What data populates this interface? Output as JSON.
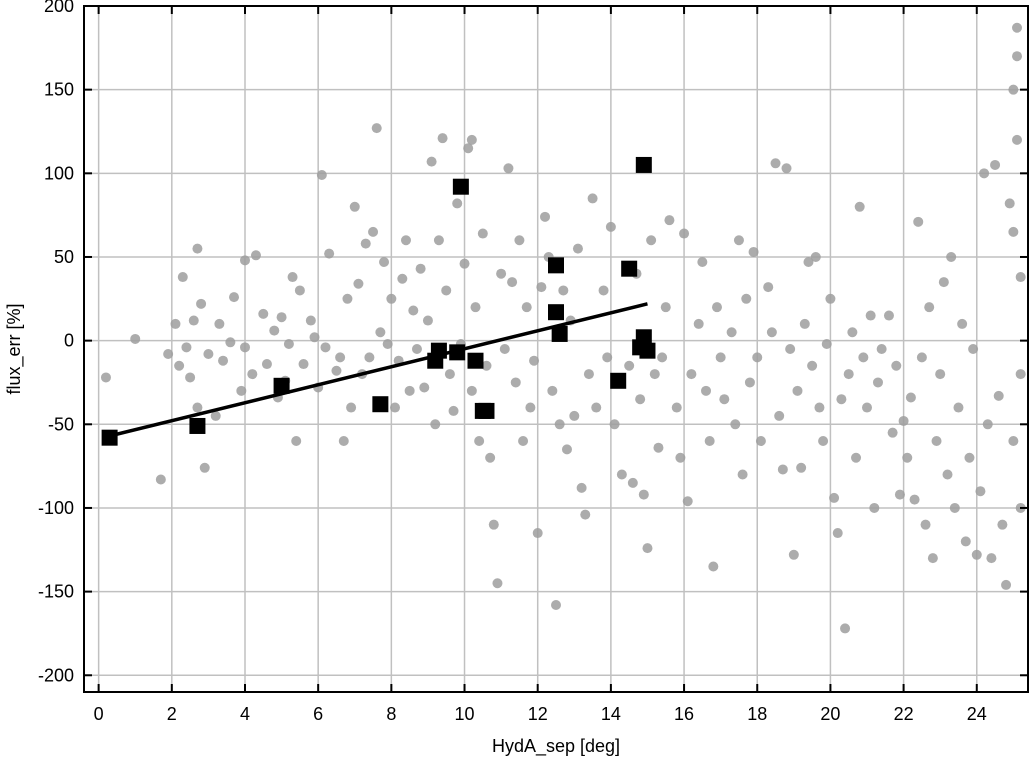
{
  "chart_data": {
    "type": "scatter",
    "title": "",
    "xlabel": "HydA_sep [deg]",
    "ylabel": "flux_err  [%]",
    "xlim": [
      -0.4,
      25.4
    ],
    "ylim": [
      -210,
      200
    ],
    "xticks": [
      0,
      2,
      4,
      6,
      8,
      10,
      12,
      14,
      16,
      18,
      20,
      22,
      24
    ],
    "yticks": [
      -200,
      -150,
      -100,
      -50,
      0,
      50,
      100,
      150,
      200
    ],
    "grid": true,
    "legend": "none",
    "colors": {
      "points": "#9e9e9e",
      "highlight": "#000000",
      "fit": "#000000",
      "grid": "#c0c0c0"
    },
    "series": [
      {
        "marker": "circle",
        "points": [
          [
            0.2,
            -22
          ],
          [
            1,
            1
          ],
          [
            1.7,
            -83
          ],
          [
            1.9,
            -8
          ],
          [
            2.1,
            10
          ],
          [
            2.2,
            -15
          ],
          [
            2.3,
            38
          ],
          [
            2.4,
            -4
          ],
          [
            2.5,
            -22
          ],
          [
            2.6,
            12
          ],
          [
            2.7,
            55
          ],
          [
            2.7,
            -40
          ],
          [
            2.8,
            22
          ],
          [
            2.9,
            -76
          ],
          [
            3,
            -8
          ],
          [
            3.2,
            -45
          ],
          [
            3.3,
            10
          ],
          [
            3.4,
            -12
          ],
          [
            3.6,
            -1
          ],
          [
            3.7,
            26
          ],
          [
            3.9,
            -30
          ],
          [
            4,
            -4
          ],
          [
            4,
            48
          ],
          [
            4.2,
            -20
          ],
          [
            4.3,
            51
          ],
          [
            4.5,
            16
          ],
          [
            4.6,
            -14
          ],
          [
            4.8,
            6
          ],
          [
            4.9,
            -34
          ],
          [
            5,
            14
          ],
          [
            5.1,
            -24
          ],
          [
            5.2,
            -2
          ],
          [
            5.3,
            38
          ],
          [
            5.4,
            -60
          ],
          [
            5.5,
            30
          ],
          [
            5.6,
            -14
          ],
          [
            5.8,
            12
          ],
          [
            5.9,
            2
          ],
          [
            6,
            -28
          ],
          [
            6.1,
            99
          ],
          [
            6.2,
            -4
          ],
          [
            6.3,
            52
          ],
          [
            6.5,
            -18
          ],
          [
            6.6,
            -10
          ],
          [
            6.7,
            -60
          ],
          [
            6.8,
            25
          ],
          [
            6.9,
            -40
          ],
          [
            7,
            80
          ],
          [
            7.1,
            34
          ],
          [
            7.2,
            -20
          ],
          [
            7.3,
            58
          ],
          [
            7.4,
            -10
          ],
          [
            7.5,
            65
          ],
          [
            7.6,
            127
          ],
          [
            7.7,
            5
          ],
          [
            7.8,
            47
          ],
          [
            7.9,
            -2
          ],
          [
            8,
            25
          ],
          [
            8.1,
            -40
          ],
          [
            8.2,
            -12
          ],
          [
            8.3,
            37
          ],
          [
            8.4,
            60
          ],
          [
            8.5,
            -30
          ],
          [
            8.6,
            18
          ],
          [
            8.7,
            -5
          ],
          [
            8.8,
            43
          ],
          [
            8.9,
            -28
          ],
          [
            9,
            12
          ],
          [
            9.1,
            107
          ],
          [
            9.2,
            -50
          ],
          [
            9.3,
            60
          ],
          [
            9.4,
            121
          ],
          [
            9.5,
            30
          ],
          [
            9.6,
            -20
          ],
          [
            9.7,
            -42
          ],
          [
            9.8,
            82
          ],
          [
            9.9,
            -2
          ],
          [
            10,
            46
          ],
          [
            10.1,
            115
          ],
          [
            10.2,
            -30
          ],
          [
            10.2,
            120
          ],
          [
            10.3,
            20
          ],
          [
            10.4,
            -60
          ],
          [
            10.5,
            64
          ],
          [
            10.6,
            -15
          ],
          [
            10.7,
            -70
          ],
          [
            10.8,
            -110
          ],
          [
            10.9,
            -145
          ],
          [
            11,
            40
          ],
          [
            11.1,
            -5
          ],
          [
            11.2,
            103
          ],
          [
            11.3,
            35
          ],
          [
            11.4,
            -25
          ],
          [
            11.5,
            60
          ],
          [
            11.6,
            -60
          ],
          [
            11.7,
            20
          ],
          [
            11.8,
            -40
          ],
          [
            11.9,
            -12
          ],
          [
            12,
            -115
          ],
          [
            12.1,
            32
          ],
          [
            12.2,
            74
          ],
          [
            12.3,
            50
          ],
          [
            12.4,
            -30
          ],
          [
            12.5,
            -158
          ],
          [
            12.6,
            -50
          ],
          [
            12.7,
            30
          ],
          [
            12.8,
            -65
          ],
          [
            12.9,
            12
          ],
          [
            13,
            -45
          ],
          [
            13.1,
            55
          ],
          [
            13.2,
            -88
          ],
          [
            13.3,
            -104
          ],
          [
            13.4,
            -20
          ],
          [
            13.5,
            85
          ],
          [
            13.6,
            -40
          ],
          [
            13.8,
            30
          ],
          [
            13.9,
            -10
          ],
          [
            14,
            68
          ],
          [
            14.1,
            -50
          ],
          [
            14.3,
            -80
          ],
          [
            14.5,
            -15
          ],
          [
            14.6,
            -85
          ],
          [
            14.7,
            40
          ],
          [
            14.8,
            -35
          ],
          [
            14.9,
            -92
          ],
          [
            15,
            -124
          ],
          [
            15.1,
            60
          ],
          [
            15.2,
            -20
          ],
          [
            15.3,
            -64
          ],
          [
            15.4,
            -10
          ],
          [
            15.5,
            20
          ],
          [
            15.6,
            72
          ],
          [
            15.8,
            -40
          ],
          [
            15.9,
            -70
          ],
          [
            16,
            64
          ],
          [
            16.1,
            -96
          ],
          [
            16.2,
            -20
          ],
          [
            16.4,
            10
          ],
          [
            16.5,
            47
          ],
          [
            16.6,
            -30
          ],
          [
            16.7,
            -60
          ],
          [
            16.8,
            -135
          ],
          [
            16.9,
            20
          ],
          [
            17,
            -10
          ],
          [
            17.1,
            -35
          ],
          [
            17.3,
            5
          ],
          [
            17.4,
            -50
          ],
          [
            17.5,
            60
          ],
          [
            17.6,
            -80
          ],
          [
            17.7,
            25
          ],
          [
            17.8,
            -25
          ],
          [
            17.9,
            53
          ],
          [
            18,
            -10
          ],
          [
            18.1,
            -60
          ],
          [
            18.3,
            32
          ],
          [
            18.4,
            5
          ],
          [
            18.5,
            106
          ],
          [
            18.6,
            -45
          ],
          [
            18.7,
            -77
          ],
          [
            18.8,
            103
          ],
          [
            18.9,
            -5
          ],
          [
            19,
            -128
          ],
          [
            19.1,
            -30
          ],
          [
            19.2,
            -76
          ],
          [
            19.3,
            10
          ],
          [
            19.4,
            47
          ],
          [
            19.5,
            -15
          ],
          [
            19.6,
            50
          ],
          [
            19.7,
            -40
          ],
          [
            19.8,
            -60
          ],
          [
            19.9,
            -2
          ],
          [
            20,
            25
          ],
          [
            20.1,
            -94
          ],
          [
            20.2,
            -115
          ],
          [
            20.3,
            -35
          ],
          [
            20.4,
            -172
          ],
          [
            20.5,
            -20
          ],
          [
            20.6,
            5
          ],
          [
            20.7,
            -70
          ],
          [
            20.8,
            80
          ],
          [
            20.9,
            -10
          ],
          [
            21,
            -40
          ],
          [
            21.1,
            15
          ],
          [
            21.2,
            -100
          ],
          [
            21.3,
            -25
          ],
          [
            21.4,
            -5
          ],
          [
            21.6,
            15
          ],
          [
            21.7,
            -55
          ],
          [
            21.8,
            -15
          ],
          [
            21.9,
            -92
          ],
          [
            22,
            -48
          ],
          [
            22.1,
            -70
          ],
          [
            22.2,
            -34
          ],
          [
            22.3,
            -95
          ],
          [
            22.4,
            71
          ],
          [
            22.5,
            -10
          ],
          [
            22.6,
            -110
          ],
          [
            22.7,
            20
          ],
          [
            22.8,
            -130
          ],
          [
            22.9,
            -60
          ],
          [
            23,
            -20
          ],
          [
            23.1,
            35
          ],
          [
            23.2,
            -80
          ],
          [
            23.3,
            50
          ],
          [
            23.4,
            -100
          ],
          [
            23.5,
            -40
          ],
          [
            23.6,
            10
          ],
          [
            23.7,
            -120
          ],
          [
            23.8,
            -70
          ],
          [
            23.9,
            -5
          ],
          [
            24,
            -128
          ],
          [
            24.1,
            -90
          ],
          [
            24.2,
            100
          ],
          [
            24.3,
            -50
          ],
          [
            24.4,
            -130
          ],
          [
            24.5,
            105
          ],
          [
            24.6,
            -33
          ],
          [
            24.7,
            -110
          ],
          [
            24.8,
            -146
          ],
          [
            24.9,
            82
          ],
          [
            25,
            65
          ],
          [
            25,
            150
          ],
          [
            25,
            -60
          ],
          [
            25.1,
            120
          ],
          [
            25.1,
            170
          ],
          [
            25.1,
            187
          ],
          [
            25.2,
            38
          ],
          [
            25.2,
            -20
          ],
          [
            25.2,
            -100
          ]
        ]
      },
      {
        "marker": "square",
        "points": [
          [
            0.3,
            -58
          ],
          [
            2.7,
            -51
          ],
          [
            5,
            -27
          ],
          [
            7.7,
            -38
          ],
          [
            9.2,
            -12
          ],
          [
            9.3,
            -6
          ],
          [
            9.8,
            -7
          ],
          [
            9.9,
            92
          ],
          [
            10.3,
            -12
          ],
          [
            10.5,
            -42
          ],
          [
            10.6,
            -42
          ],
          [
            12.5,
            45
          ],
          [
            12.5,
            17
          ],
          [
            12.6,
            4
          ],
          [
            14.2,
            -24
          ],
          [
            14.5,
            43
          ],
          [
            14.8,
            -4
          ],
          [
            14.9,
            2
          ],
          [
            14.9,
            105
          ],
          [
            15.0,
            -6
          ]
        ]
      }
    ],
    "fit_line": {
      "x": [
        0.3,
        15.0
      ],
      "y": [
        -57,
        22
      ]
    }
  }
}
